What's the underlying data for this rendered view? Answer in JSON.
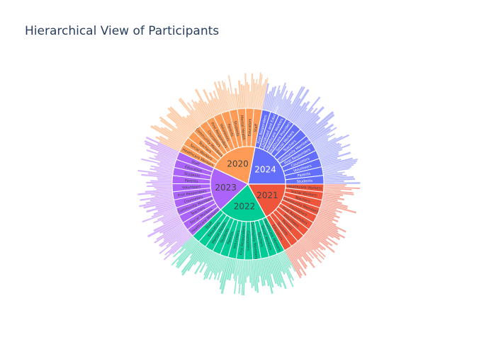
{
  "chart_data": {
    "type": "sunburst",
    "title": "Hierarchical View of Participants",
    "inner_label_color": "#ffffff",
    "years": [
      {
        "name": "2024",
        "value": 22,
        "color": "#636efa",
        "light": "#b9bdfd",
        "label_color": "#ffffff",
        "categories": [
          "First Responders",
          "Early Childhood and Education",
          "Healthcare Workers",
          "Healthcare Providers",
          "Social Workers",
          "Teachers",
          "Community Members",
          "First Responders",
          "Counselors",
          "Volunteers",
          "Parents",
          "Students"
        ]
      },
      {
        "name": "2020",
        "value": 21,
        "color": "#fe9b56",
        "light": "#fecda9",
        "label_color": "#444444",
        "categories": [
          "Healthcare Workers",
          "Social Workers",
          "Teachers",
          "Community Members",
          "Counselors",
          "First Responders",
          "Volunteers",
          "Parents",
          "Students",
          "Mental Health",
          "Educators",
          "Staff"
        ]
      },
      {
        "name": "2023",
        "value": 19,
        "color": "#ab63fa",
        "light": "#d7b6fd",
        "label_color": "#444444",
        "categories": [
          "Healthcare Workers",
          "Social Workers",
          "Teachers",
          "Community Members",
          "Counselors",
          "First Responders",
          "Volunteers",
          "Parents",
          "Students",
          "Educators",
          "Staff"
        ]
      },
      {
        "name": "2022",
        "value": 21,
        "color": "#00cc96",
        "light": "#8be6cd",
        "label_color": "#444444",
        "categories": [
          "Healthcare Workers",
          "Social Workers",
          "Teachers",
          "Community Members",
          "Counselors",
          "First Responders",
          "Volunteers",
          "Parents",
          "Students",
          "Mental Health",
          "Educators",
          "Staff"
        ]
      },
      {
        "name": "2021",
        "value": 17,
        "color": "#ef553b",
        "light": "#f7ad9f",
        "label_color": "#444444",
        "categories": [
          "Healthcare Workers",
          "Social Workers",
          "Teachers",
          "Community Members",
          "Counselors",
          "First Responders",
          "Volunteers",
          "Parents",
          "Students",
          "Educators"
        ]
      }
    ]
  }
}
